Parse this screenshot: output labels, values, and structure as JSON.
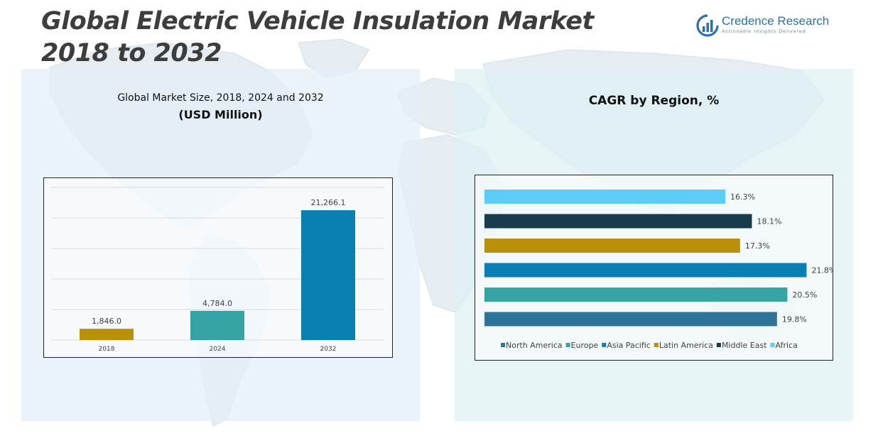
{
  "title": {
    "line1": "Global Electric Vehicle Insulation Market",
    "line2": "2018 to 2032"
  },
  "logo": {
    "name": "Credence Research",
    "tagline": "Actionable Insights Delivered"
  },
  "left_panel": {
    "subtitle": "Global Market Size, 2018, 2024 and 2032",
    "subtitle_unit": "(USD Million)"
  },
  "right_panel": {
    "subtitle": "CAGR by Region, %"
  },
  "chart_data": [
    {
      "type": "bar",
      "title": "Global Market Size, 2018, 2024 and 2032",
      "ylabel": "(USD Million)",
      "categories": [
        "2018",
        "2024",
        "2032"
      ],
      "values": [
        1846.0,
        4784.0,
        21266.1
      ],
      "value_labels": [
        "1,846.0",
        "4,784.0",
        "21,266.1"
      ],
      "colors": [
        "#B8900A",
        "#35A3A3",
        "#0A80B2"
      ],
      "ylim": [
        0,
        25000
      ],
      "grid": true
    },
    {
      "type": "bar",
      "orientation": "horizontal",
      "title": "CAGR by Region, %",
      "categories": [
        "North America",
        "Europe",
        "Asia Pacific",
        "Latin America",
        "Middle East",
        "Africa"
      ],
      "values": [
        19.8,
        20.5,
        21.8,
        17.3,
        18.1,
        16.3
      ],
      "value_labels": [
        "19.8%",
        "20.5%",
        "21.8%",
        "17.3%",
        "18.1%",
        "16.3%"
      ],
      "colors": [
        "#2E7499",
        "#35A3A3",
        "#0A80B2",
        "#B8900A",
        "#183B4E",
        "#5CCDF7"
      ],
      "xlim": [
        0,
        22.5
      ],
      "legend": "bottom",
      "grid": false
    }
  ]
}
